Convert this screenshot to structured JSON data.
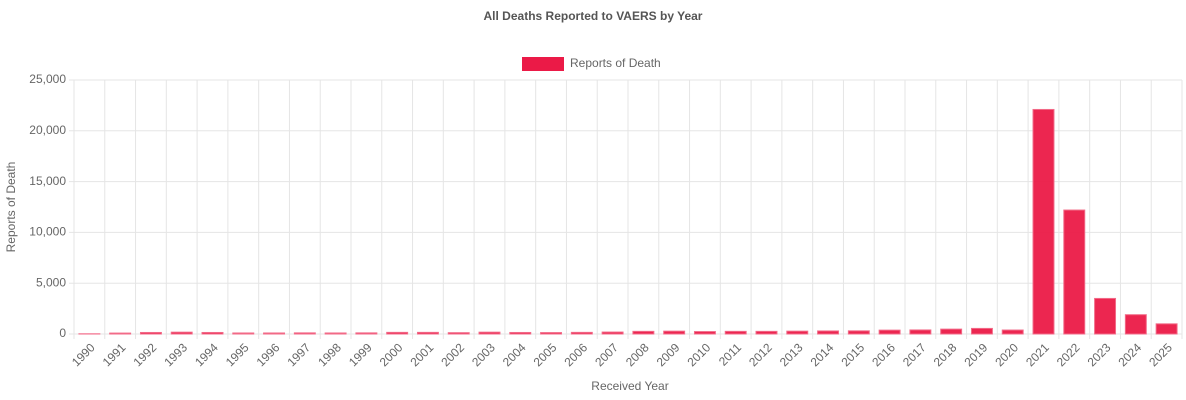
{
  "chart_data": {
    "type": "bar",
    "title": "All Deaths Reported to VAERS by Year",
    "x_label": "Received Year",
    "y_label": "Reports of Death",
    "categories": [
      "1990",
      "1991",
      "1992",
      "1993",
      "1994",
      "1995",
      "1996",
      "1997",
      "1998",
      "1999",
      "2000",
      "2001",
      "2002",
      "2003",
      "2004",
      "2005",
      "2006",
      "2007",
      "2008",
      "2009",
      "2010",
      "2011",
      "2012",
      "2013",
      "2014",
      "2015",
      "2016",
      "2017",
      "2018",
      "2019",
      "2020",
      "2021",
      "2022",
      "2023",
      "2024",
      "2025"
    ],
    "series": [
      {
        "name": "Reports of Death",
        "color": "#eb1a47",
        "values": [
          20,
          90,
          150,
          180,
          150,
          100,
          100,
          110,
          100,
          110,
          160,
          160,
          130,
          180,
          150,
          140,
          160,
          190,
          260,
          280,
          240,
          260,
          260,
          280,
          300,
          310,
          380,
          400,
          480,
          550,
          390,
          22100,
          12200,
          3500,
          1900,
          1000
        ]
      }
    ],
    "ylim": [
      0,
      25000
    ],
    "yticks": [
      0,
      {
        "value": 5000,
        "label": "5,000"
      },
      {
        "value": 10000,
        "label": "10,000"
      },
      {
        "value": 15000,
        "label": "15,000"
      },
      {
        "value": 20000,
        "label": "20,000"
      },
      {
        "value": 25000,
        "label": "25,000"
      }
    ],
    "grid": true,
    "legend": "top"
  }
}
